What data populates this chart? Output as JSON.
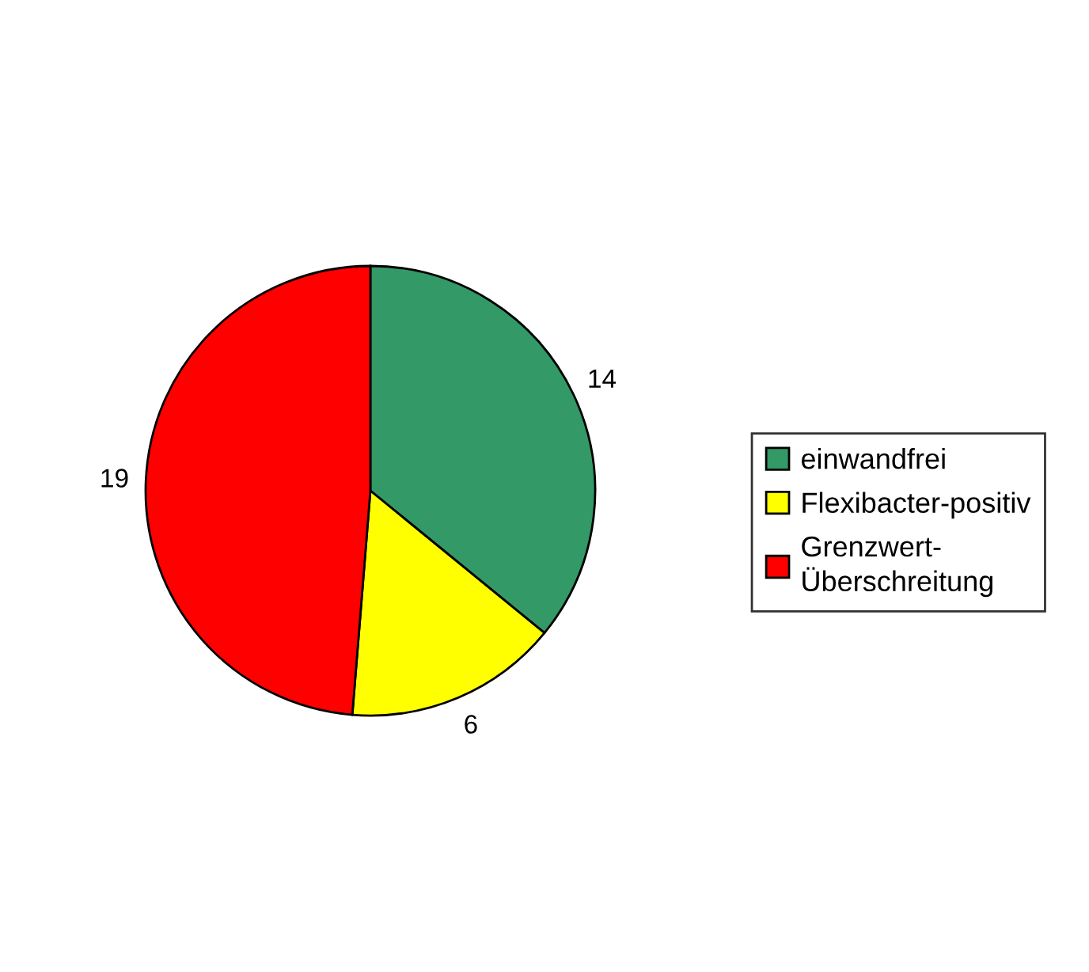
{
  "chart_data": {
    "type": "pie",
    "categories": [
      "einwandfrei",
      "Flexibacter-positiv",
      "Grenzwert-\nÜberschreitung"
    ],
    "values": [
      14,
      6,
      19
    ],
    "colors": [
      "#339966",
      "#ffff00",
      "#ff0000"
    ],
    "data_labels": true,
    "legend": "right"
  }
}
